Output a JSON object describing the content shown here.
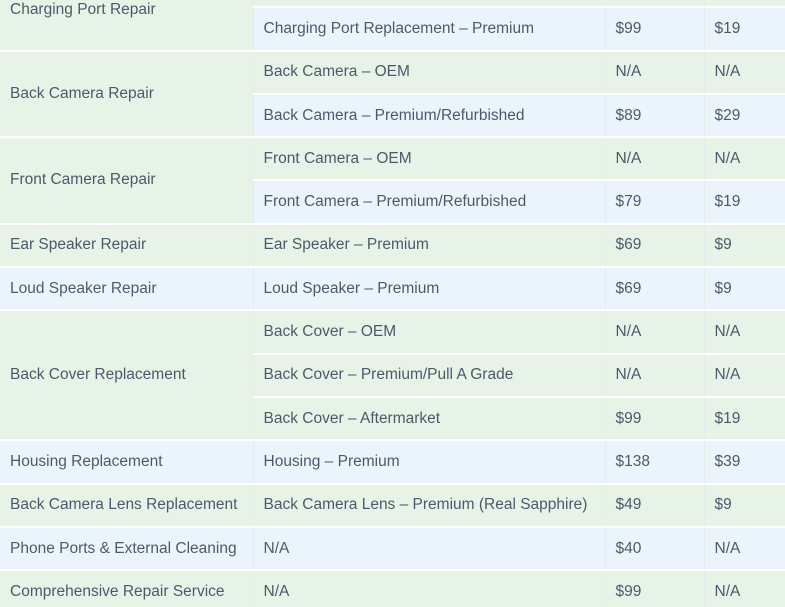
{
  "table": {
    "description": "phone repair pricing table, top and bottom rows partially cut off by viewport",
    "colors": {
      "row_green": "#e8f3e8",
      "row_blue": "#ecf4fb",
      "text": "#4b5a6b"
    },
    "groups": [
      {
        "category": "Charging Port Repair",
        "cell_color": "green",
        "category_valign": "top",
        "rows": [
          {
            "service": "",
            "price_primary": "",
            "price_secondary": "",
            "color": "green"
          },
          {
            "service": "Charging Port Replacement – Premium",
            "price_primary": "$99",
            "price_secondary": "$19",
            "color": "blue"
          }
        ]
      },
      {
        "category": "Back Camera Repair",
        "cell_color": "green",
        "rows": [
          {
            "service": "Back Camera – OEM",
            "price_primary": "N/A",
            "price_secondary": "N/A",
            "color": "green"
          },
          {
            "service": "Back Camera – Premium/Refurbished",
            "price_primary": "$89",
            "price_secondary": "$29",
            "color": "blue"
          }
        ]
      },
      {
        "category": "Front Camera Repair",
        "cell_color": "green",
        "rows": [
          {
            "service": "Front Camera – OEM",
            "price_primary": "N/A",
            "price_secondary": "N/A",
            "color": "green"
          },
          {
            "service": "Front Camera – Premium/Refurbished",
            "price_primary": "$79",
            "price_secondary": "$19",
            "color": "blue"
          }
        ]
      },
      {
        "category": "Ear Speaker Repair",
        "cell_color": "green",
        "rows": [
          {
            "service": "Ear Speaker – Premium",
            "price_primary": "$69",
            "price_secondary": "$9",
            "color": "green"
          }
        ]
      },
      {
        "category": "Loud Speaker Repair",
        "cell_color": "blue",
        "rows": [
          {
            "service": "Loud Speaker – Premium",
            "price_primary": "$69",
            "price_secondary": "$9",
            "color": "blue"
          }
        ]
      },
      {
        "category": "Back Cover Replacement",
        "cell_color": "green",
        "rows": [
          {
            "service": "Back Cover – OEM",
            "price_primary": "N/A",
            "price_secondary": "N/A",
            "color": "green"
          },
          {
            "service": "Back Cover – Premium/Pull A Grade",
            "price_primary": "N/A",
            "price_secondary": "N/A",
            "color": "green"
          },
          {
            "service": "Back Cover – Aftermarket",
            "price_primary": "$99",
            "price_secondary": "$19",
            "color": "green"
          }
        ]
      },
      {
        "category": "Housing Replacement",
        "cell_color": "blue",
        "rows": [
          {
            "service": "Housing – Premium",
            "price_primary": "$138",
            "price_secondary": "$39",
            "color": "blue"
          }
        ]
      },
      {
        "category": "Back Camera Lens Replacement",
        "cell_color": "green",
        "rows": [
          {
            "service": "Back Camera Lens – Premium (Real Sapphire)",
            "price_primary": "$49",
            "price_secondary": "$9",
            "color": "green"
          }
        ]
      },
      {
        "category": "Phone Ports & External Cleaning",
        "cell_color": "blue",
        "rows": [
          {
            "service": "N/A",
            "price_primary": "$40",
            "price_secondary": "N/A",
            "color": "blue"
          }
        ]
      },
      {
        "category": "Comprehensive Repair Service",
        "cell_color": "green",
        "rows": [
          {
            "service": "N/A",
            "price_primary": "$99",
            "price_secondary": "N/A",
            "color": "green"
          }
        ]
      }
    ]
  }
}
